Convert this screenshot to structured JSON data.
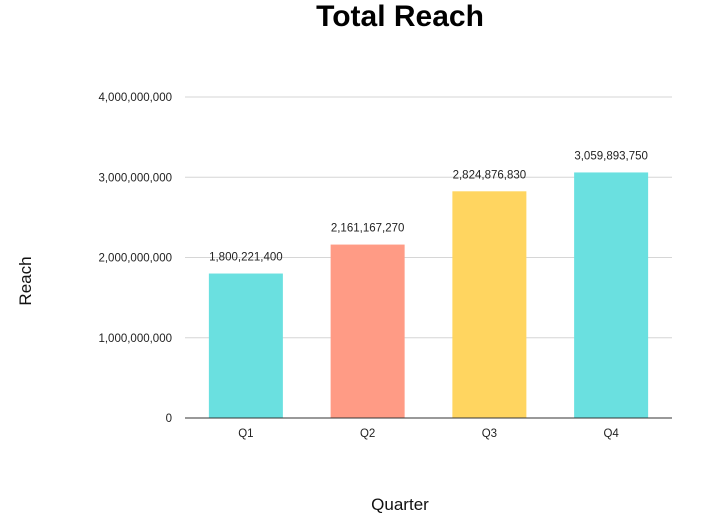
{
  "chart_data": {
    "type": "bar",
    "title": "Total Reach",
    "xlabel": "Quarter",
    "ylabel": "Reach",
    "categories": [
      "Q1",
      "Q2",
      "Q3",
      "Q4"
    ],
    "values": [
      1800221400,
      2161167270,
      2824876830,
      3059893750
    ],
    "value_labels": [
      "1,800,221,400",
      "2,161,167,270",
      "2,824,876,830",
      "3,059,893,750"
    ],
    "bar_colors": [
      "#6ae0e0",
      "#ff9b85",
      "#ffd560",
      "#6ae0e0"
    ],
    "ylim": [
      0,
      4000000000
    ],
    "yticks": [
      0,
      1000000000,
      2000000000,
      3000000000,
      4000000000
    ],
    "ytick_labels": [
      "0",
      "1,000,000,000",
      "2,000,000,000",
      "3,000,000,000",
      "4,000,000,000"
    ],
    "grid": true,
    "legend": "none"
  }
}
